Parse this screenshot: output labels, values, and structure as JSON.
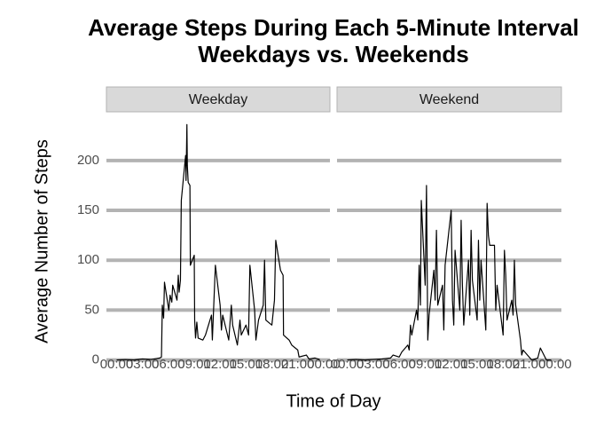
{
  "chart_data": {
    "type": "line",
    "title": [
      "Average Steps During Each 5-Minute Interval",
      "Weekdays vs. Weekends"
    ],
    "x_label": "Time of Day",
    "y_label": "Average Number of Steps",
    "xlim": [
      -118,
      2473
    ],
    "ylim": [
      -11,
      247
    ],
    "xticks": [
      {
        "value": 0,
        "label": "00:00"
      },
      {
        "value": 300,
        "label": "03:00"
      },
      {
        "value": 600,
        "label": "06:00"
      },
      {
        "value": 900,
        "label": "09:00"
      },
      {
        "value": 1200,
        "label": "12:00"
      },
      {
        "value": 1500,
        "label": "15:00"
      },
      {
        "value": 1800,
        "label": "18:00"
      },
      {
        "value": 2100,
        "label": "21:00"
      },
      {
        "value": 2400,
        "label": "00:00"
      }
    ],
    "yticks": [
      0,
      50,
      100,
      150,
      200
    ],
    "grid": true,
    "series": [
      {
        "name": "Weekday",
        "color": "#000000",
        "x": [
          0,
          100,
          200,
          300,
          400,
          500,
          520,
          530,
          545,
          555,
          605,
          620,
          640,
          650,
          700,
          715,
          725,
          740,
          750,
          800,
          805,
          815,
          820,
          830,
          850,
          855,
          900,
          905,
          915,
          930,
          945,
          1000,
          1030,
          1100,
          1110,
          1145,
          1200,
          1215,
          1230,
          1300,
          1330,
          1345,
          1400,
          1430,
          1445,
          1500,
          1530,
          1545,
          1600,
          1615,
          1645,
          1700,
          1715,
          1730,
          1800,
          1830,
          1845,
          1900,
          1930,
          1935,
          2000,
          2030,
          2100,
          2115,
          2200,
          2230,
          2300,
          2355
        ],
        "values": [
          0,
          0.4,
          0,
          1,
          0.5,
          2,
          3,
          55,
          42,
          78,
          50,
          65,
          58,
          75,
          60,
          85,
          68,
          80,
          160,
          205,
          180,
          236,
          195,
          178,
          175,
          95,
          105,
          40,
          22,
          38,
          22,
          20,
          25,
          45,
          20,
          95,
          55,
          30,
          45,
          20,
          55,
          35,
          15,
          40,
          25,
          35,
          25,
          95,
          50,
          20,
          40,
          55,
          100,
          40,
          35,
          60,
          120,
          90,
          85,
          25,
          20,
          15,
          10,
          3,
          5,
          1,
          2,
          0.5
        ]
      },
      {
        "name": "Weekend",
        "color": "#000000",
        "x": [
          0,
          100,
          200,
          300,
          400,
          500,
          530,
          600,
          630,
          700,
          715,
          730,
          745,
          800,
          815,
          830,
          845,
          855,
          900,
          915,
          930,
          945,
          1000,
          1015,
          1030,
          1045,
          1100,
          1115,
          1130,
          1200,
          1215,
          1230,
          1245,
          1300,
          1315,
          1330,
          1345,
          1400,
          1415,
          1430,
          1445,
          1500,
          1515,
          1530,
          1545,
          1600,
          1615,
          1630,
          1645,
          1700,
          1715,
          1730,
          1800,
          1815,
          1830,
          1845,
          1900,
          1915,
          1930,
          1945,
          2000,
          2015,
          2030,
          2100,
          2130,
          2200,
          2230,
          2300,
          2355
        ],
        "values": [
          0,
          0.5,
          0,
          0.5,
          1,
          2,
          5,
          3,
          8,
          15,
          10,
          35,
          25,
          50,
          40,
          95,
          55,
          160,
          75,
          175,
          20,
          45,
          90,
          60,
          130,
          55,
          75,
          30,
          95,
          150,
          60,
          35,
          110,
          50,
          140,
          75,
          35,
          100,
          45,
          130,
          80,
          40,
          120,
          60,
          100,
          30,
          157,
          125,
          115,
          115,
          50,
          75,
          25,
          110,
          85,
          40,
          60,
          45,
          100,
          55,
          20,
          5,
          10,
          3,
          0,
          2,
          12,
          0,
          0
        ]
      }
    ]
  }
}
